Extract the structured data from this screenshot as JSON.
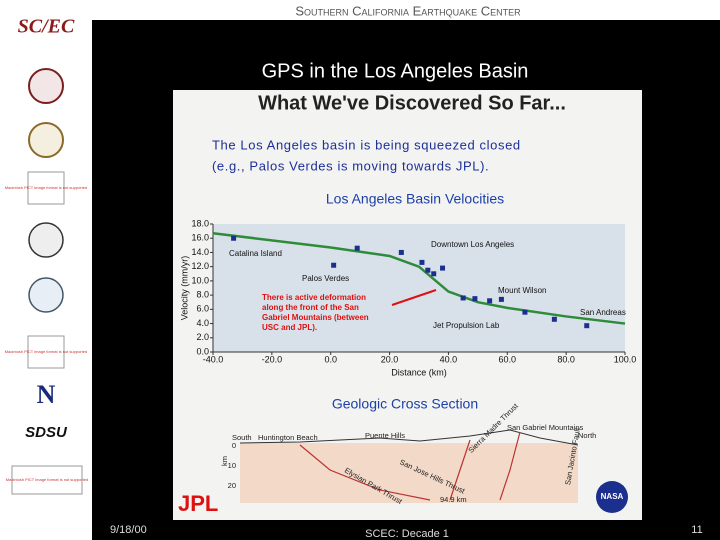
{
  "header": {
    "organization": "Southern California Earthquake Center"
  },
  "sidebar": {
    "logo": "SC/EC",
    "placeholder_text": "Macintosh PICT image format is not supported",
    "n_logo": "N",
    "sdsu_logo": "SDSU"
  },
  "slide": {
    "title": "GPS in the Los Angeles Basin"
  },
  "figure": {
    "heading": "What We've Discovered So Far...",
    "caption_line1": "The Los Angeles basin is being squeezed closed",
    "caption_line2": "(e.g., Palos Verdes is moving towards JPL).",
    "chart": {
      "type": "scatter",
      "title": "Los Angeles Basin Velocities",
      "x_label": "Distance (km)",
      "y_label": "Velocity (mm/yr)",
      "xlim": [
        -40,
        100
      ],
      "ylim": [
        0,
        18
      ],
      "xticks": [
        {
          "value": -40,
          "label": "-40.0"
        },
        {
          "value": -20,
          "label": "-20.0"
        },
        {
          "value": 0,
          "label": "0.0"
        },
        {
          "value": 20,
          "label": "20.0"
        },
        {
          "value": 40,
          "label": "40.0"
        },
        {
          "value": 60,
          "label": "60.0"
        },
        {
          "value": 80,
          "label": "80.0"
        },
        {
          "value": 100,
          "label": "100.0"
        }
      ],
      "yticks": [
        {
          "value": 0,
          "label": "0.0"
        },
        {
          "value": 2,
          "label": "2.0"
        },
        {
          "value": 4,
          "label": "4.0"
        },
        {
          "value": 6,
          "label": "6.0"
        },
        {
          "value": 8,
          "label": "8.0"
        },
        {
          "value": 10,
          "label": "10.0"
        },
        {
          "value": 12,
          "label": "12.0"
        },
        {
          "value": 14,
          "label": "14.0"
        },
        {
          "value": 16,
          "label": "16.0"
        },
        {
          "value": 18,
          "label": "18.0"
        }
      ],
      "series": [
        {
          "style": "points",
          "color": "#1b2f8f",
          "x": [
            -33,
            1,
            9,
            24,
            31,
            33,
            35,
            38,
            45,
            49,
            54,
            58,
            66,
            76,
            87
          ],
          "values": [
            16.0,
            12.2,
            14.6,
            14.0,
            12.6,
            11.5,
            11.0,
            11.8,
            7.6,
            7.5,
            7.2,
            7.4,
            5.6,
            4.6,
            3.7
          ]
        },
        {
          "style": "line",
          "color": "#2e8b3a",
          "x": [
            -40,
            0,
            20,
            30,
            40,
            50,
            60,
            80,
            100
          ],
          "values": [
            16.7,
            14.7,
            13.5,
            12.0,
            8.5,
            7.0,
            6.2,
            5.0,
            4.0
          ]
        }
      ],
      "annotations": [
        "Catalina Island",
        "Palos Verdes",
        "Downtown Los Angeles",
        "Mount Wilson",
        "San Andreas",
        "Jet Propulsion Lab"
      ],
      "callout": [
        "There is active deformation",
        "along the front of the San",
        "Gabriel Mountains (between",
        "USC and JPL)."
      ]
    },
    "cross_section": {
      "title": "Geologic Cross Section",
      "south": "South",
      "north": "North",
      "places": [
        "Huntington Beach",
        "Puente Hills",
        "San Gabriel Mountains"
      ],
      "faults": [
        "Elysian Park Thrust",
        "San Jose Hills Thrust",
        "Sierra Madre Thrust",
        "San Jacinto Fault"
      ],
      "depth_unit": "km",
      "depths": [
        "0",
        "10",
        "20"
      ],
      "scale": "94.9 km"
    },
    "jpl_logo": "JPL",
    "nasa_logo": "NASA"
  },
  "footer": {
    "date": "9/18/00",
    "center": "SCEC: Decade 1",
    "page": "11"
  }
}
